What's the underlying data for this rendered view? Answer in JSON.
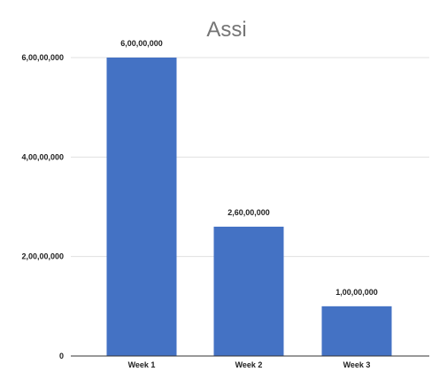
{
  "chart_data": {
    "type": "bar",
    "title": "Assi",
    "xlabel": "",
    "ylabel": "",
    "categories": [
      "Week 1",
      "Week 2",
      "Week 3"
    ],
    "values": [
      60000000,
      26000000,
      10000000
    ],
    "value_labels": [
      "6,00,00,000",
      "2,60,00,000",
      "1,00,00,000"
    ],
    "ylim": [
      0,
      60000000
    ],
    "yticks": [
      0,
      20000000,
      40000000,
      60000000
    ],
    "ytick_labels": [
      "0",
      "2,00,00,000",
      "4,00,00,000",
      "6,00,00,000"
    ],
    "grid": true,
    "legend": "none",
    "colors": {
      "bar": "#4472c4"
    }
  }
}
